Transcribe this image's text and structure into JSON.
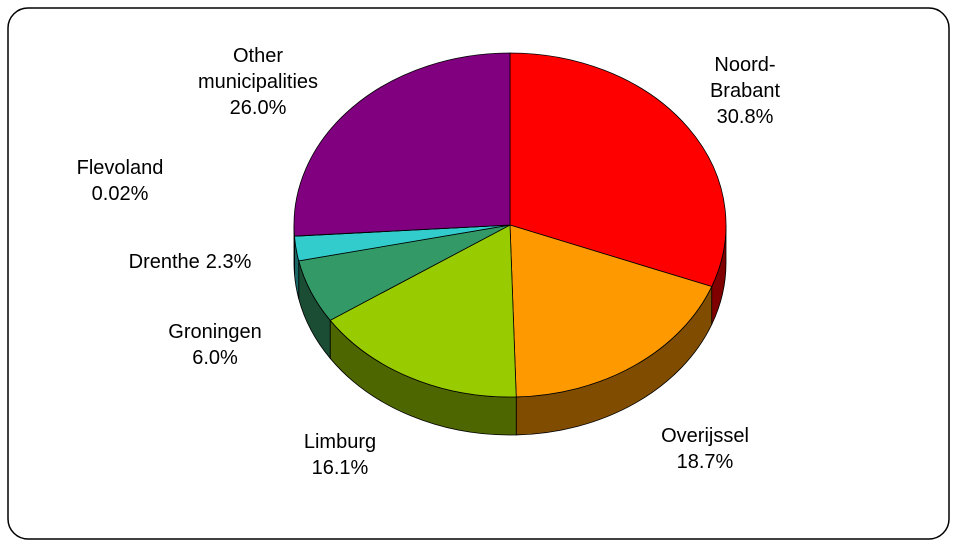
{
  "chart_data": {
    "type": "pie",
    "categories": [
      "Noord-Brabant",
      "Overijssel",
      "Limburg",
      "Groningen",
      "Drenthe",
      "Flevoland",
      "Other municipalities"
    ],
    "values": [
      30.8,
      18.7,
      16.1,
      6.0,
      2.3,
      0.02,
      26.0
    ],
    "value_labels": [
      "30.8%",
      "18.7%",
      "16.1%",
      "6.0%",
      "2.3%",
      "0.02%",
      "26.0%"
    ],
    "colors": [
      "#ff0000",
      "#ff9900",
      "#99cc00",
      "#339966",
      "#33cccc",
      "#3366ff",
      "#800080"
    ]
  }
}
